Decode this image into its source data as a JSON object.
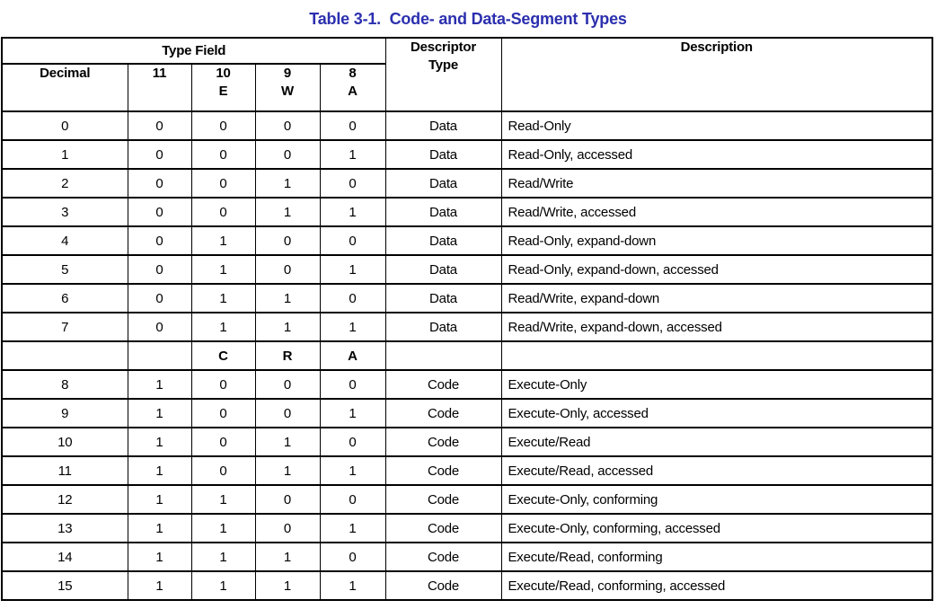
{
  "title": "Table 3-1.  Code- and Data-Segment Types",
  "colors": {
    "title_blue": "#2b2fae",
    "border": "#000000",
    "text": "#000000",
    "background": "#ffffff"
  },
  "table": {
    "header": {
      "type_field": "Type Field",
      "decimal": "Decimal",
      "bit11": "11",
      "bit10": "10\nE",
      "bit9": "9\nW",
      "bit8": "8\nA",
      "descriptor_type": "Descriptor\nType",
      "description": "Description"
    },
    "rows": [
      {
        "cells": [
          "0",
          "0",
          "0",
          "0",
          "0",
          "Data",
          "Read-Only"
        ],
        "bold": false
      },
      {
        "cells": [
          "1",
          "0",
          "0",
          "0",
          "1",
          "Data",
          "Read-Only, accessed"
        ],
        "bold": false
      },
      {
        "cells": [
          "2",
          "0",
          "0",
          "1",
          "0",
          "Data",
          "Read/Write"
        ],
        "bold": false
      },
      {
        "cells": [
          "3",
          "0",
          "0",
          "1",
          "1",
          "Data",
          "Read/Write, accessed"
        ],
        "bold": false
      },
      {
        "cells": [
          "4",
          "0",
          "1",
          "0",
          "0",
          "Data",
          "Read-Only, expand-down"
        ],
        "bold": false
      },
      {
        "cells": [
          "5",
          "0",
          "1",
          "0",
          "1",
          "Data",
          "Read-Only, expand-down, accessed"
        ],
        "bold": false
      },
      {
        "cells": [
          "6",
          "0",
          "1",
          "1",
          "0",
          "Data",
          "Read/Write, expand-down"
        ],
        "bold": false
      },
      {
        "cells": [
          "7",
          "0",
          "1",
          "1",
          "1",
          "Data",
          "Read/Write, expand-down, accessed"
        ],
        "bold": false
      },
      {
        "cells": [
          "",
          "",
          "C",
          "R",
          "A",
          "",
          ""
        ],
        "bold": true
      },
      {
        "cells": [
          "8",
          "1",
          "0",
          "0",
          "0",
          "Code",
          "Execute-Only"
        ],
        "bold": false
      },
      {
        "cells": [
          "9",
          "1",
          "0",
          "0",
          "1",
          "Code",
          "Execute-Only, accessed"
        ],
        "bold": false
      },
      {
        "cells": [
          "10",
          "1",
          "0",
          "1",
          "0",
          "Code",
          "Execute/Read"
        ],
        "bold": false
      },
      {
        "cells": [
          "11",
          "1",
          "0",
          "1",
          "1",
          "Code",
          "Execute/Read, accessed"
        ],
        "bold": false
      },
      {
        "cells": [
          "12",
          "1",
          "1",
          "0",
          "0",
          "Code",
          "Execute-Only, conforming"
        ],
        "bold": false
      },
      {
        "cells": [
          "13",
          "1",
          "1",
          "0",
          "1",
          "Code",
          "Execute-Only, conforming, accessed"
        ],
        "bold": false
      },
      {
        "cells": [
          "14",
          "1",
          "1",
          "1",
          "0",
          "Code",
          "Execute/Read, conforming"
        ],
        "bold": false
      },
      {
        "cells": [
          "15",
          "1",
          "1",
          "1",
          "1",
          "Code",
          "Execute/Read, conforming, accessed"
        ],
        "bold": false
      }
    ]
  }
}
